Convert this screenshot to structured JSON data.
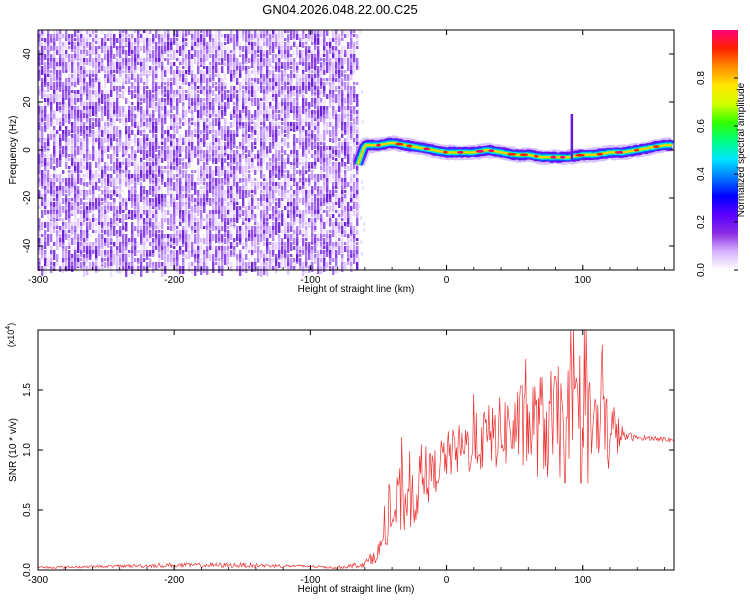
{
  "title": "GN04.2026.048.22.00.C25",
  "chart_data": [
    {
      "type": "heatmap",
      "xlabel": "Height of straight line (km)",
      "ylabel": "Frequency (Hz)",
      "xlim": [
        -300,
        167
      ],
      "ylim": [
        -50,
        50
      ],
      "x_ticks": [
        -300,
        -200,
        -100,
        0,
        100
      ],
      "y_ticks": [
        -40,
        -20,
        0,
        20,
        40
      ],
      "colorbar": {
        "label": "Normalized spectral amplitude",
        "range": [
          0,
          1
        ],
        "ticks": [
          "0.0",
          "0.2",
          "0.4",
          "0.6",
          "0.8"
        ],
        "colors": [
          "#ffffff",
          "#d9b3ff",
          "#8a2be2",
          "#5a00ff",
          "#0000ff",
          "#0078ff",
          "#00e5ff",
          "#00ff80",
          "#32ff00",
          "#d4ff00",
          "#ffe600",
          "#ff8c00",
          "#ff2200",
          "#ff0077"
        ]
      },
      "noise_region_x": [
        -300,
        -65
      ],
      "signal_trace": {
        "x": [
          -65,
          -60,
          -50,
          -40,
          -30,
          -20,
          -10,
          0,
          10,
          20,
          30,
          40,
          50,
          60,
          70,
          80,
          90,
          100,
          110,
          120,
          130,
          140,
          150,
          160,
          167
        ],
        "y": [
          -6,
          2,
          2,
          3,
          2,
          1,
          0,
          -1,
          -1,
          -1,
          0,
          -1,
          -2,
          -2,
          -3,
          -3,
          -3,
          -2,
          -2,
          -1,
          -1,
          0,
          1,
          2,
          2
        ]
      }
    },
    {
      "type": "line",
      "xlabel": "Height of straight line (km)",
      "ylabel": "SNR (10 * v/v)",
      "y_multiplier": "(x10",
      "y_multiplier_exp": "4",
      "xlim": [
        -300,
        167
      ],
      "ylim": [
        0,
        2.0
      ],
      "x_ticks": [
        -300,
        -200,
        -100,
        0,
        100
      ],
      "y_ticks": [
        "0.0",
        "0.5",
        "1.0",
        "1.5"
      ],
      "line_color": "#ee3333",
      "series": [
        {
          "x": [
            -300,
            -250,
            -200,
            -150,
            -100,
            -80,
            -60,
            -50,
            -45,
            -40,
            -35,
            -30,
            -25,
            -20,
            -15,
            -10,
            -5,
            0,
            10,
            20,
            30,
            40,
            50,
            60,
            70,
            80,
            90,
            100,
            110,
            120,
            130,
            140,
            150,
            160,
            167
          ],
          "y": [
            0.02,
            0.03,
            0.04,
            0.04,
            0.03,
            0.02,
            0.05,
            0.15,
            0.3,
            0.45,
            0.55,
            0.6,
            0.62,
            0.7,
            0.75,
            0.8,
            0.9,
            0.95,
            1.0,
            1.05,
            1.1,
            1.15,
            1.18,
            1.2,
            1.2,
            1.2,
            1.2,
            1.18,
            1.17,
            1.15,
            1.12,
            1.1,
            1.1,
            1.09,
            1.08
          ],
          "spread": [
            0.01,
            0.01,
            0.02,
            0.02,
            0.01,
            0.01,
            0.03,
            0.08,
            0.15,
            0.25,
            0.3,
            0.3,
            0.3,
            0.25,
            0.22,
            0.2,
            0.2,
            0.2,
            0.22,
            0.25,
            0.28,
            0.3,
            0.35,
            0.4,
            0.45,
            0.5,
            0.5,
            0.5,
            0.45,
            0.35,
            0.05,
            0.02,
            0.02,
            0.02,
            0.02
          ]
        }
      ]
    }
  ]
}
